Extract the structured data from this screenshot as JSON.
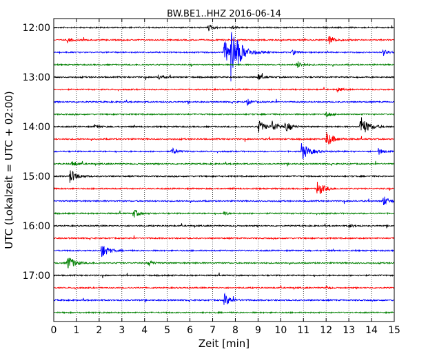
{
  "chart_data": {
    "type": "line",
    "title": "BW.BE1..HHZ 2016-06-14",
    "xlabel": "Zeit  [min]",
    "ylabel": "UTC (Lokalzeit = UTC + 02:00)",
    "xlim": [
      0,
      15
    ],
    "x_ticks": [
      "0",
      "1",
      "2",
      "3",
      "4",
      "5",
      "6",
      "7",
      "8",
      "9",
      "10",
      "11",
      "12",
      "13",
      "14",
      "15"
    ],
    "y_ticks": [
      "12:00",
      "13:00",
      "14:00",
      "15:00",
      "16:00",
      "17:00"
    ],
    "grid": "vertical dotted at each minute",
    "line_interval_min": 15,
    "color_cycle": [
      "#000000",
      "#ff0000",
      "#0000ff",
      "#008000"
    ],
    "traces": [
      {
        "start": "12:00",
        "events": [
          {
            "t": 6.8,
            "amp": 0.5
          },
          {
            "t": 7.8,
            "amp": 0.3
          }
        ]
      },
      {
        "start": "12:15",
        "events": [
          {
            "t": 0.6,
            "amp": 0.4
          },
          {
            "t": 12.1,
            "amp": 0.8
          }
        ]
      },
      {
        "start": "12:30",
        "events": [
          {
            "t": 7.5,
            "amp": 1.8
          },
          {
            "t": 7.8,
            "amp": 3.5
          },
          {
            "t": 10.5,
            "amp": 0.4
          },
          {
            "t": 14.5,
            "amp": 0.5
          }
        ]
      },
      {
        "start": "12:45",
        "events": [
          {
            "t": 10.7,
            "amp": 0.6
          }
        ]
      },
      {
        "start": "13:00",
        "events": [
          {
            "t": 4.6,
            "amp": 0.4
          },
          {
            "t": 9.0,
            "amp": 0.5
          }
        ]
      },
      {
        "start": "13:15",
        "events": [
          {
            "t": 12.5,
            "amp": 0.3
          }
        ]
      },
      {
        "start": "13:30",
        "events": [
          {
            "t": 8.5,
            "amp": 0.5
          }
        ]
      },
      {
        "start": "13:45",
        "events": [
          {
            "t": 12.0,
            "amp": 0.5
          }
        ]
      },
      {
        "start": "14:00",
        "events": [
          {
            "t": 1.8,
            "amp": 0.3
          },
          {
            "t": 9.0,
            "amp": 1.0
          },
          {
            "t": 9.6,
            "amp": 0.9
          },
          {
            "t": 10.2,
            "amp": 0.8
          },
          {
            "t": 13.5,
            "amp": 1.6
          }
        ]
      },
      {
        "start": "14:15",
        "events": [
          {
            "t": 12.0,
            "amp": 1.2
          }
        ]
      },
      {
        "start": "14:30",
        "events": [
          {
            "t": 5.2,
            "amp": 0.6
          },
          {
            "t": 10.9,
            "amp": 1.4
          },
          {
            "t": 14.3,
            "amp": 0.5
          }
        ]
      },
      {
        "start": "14:45",
        "events": [
          {
            "t": 0.8,
            "amp": 0.5
          }
        ]
      },
      {
        "start": "15:00",
        "events": [
          {
            "t": 0.7,
            "amp": 1.1
          }
        ]
      },
      {
        "start": "15:15",
        "events": [
          {
            "t": 11.6,
            "amp": 1.2
          }
        ]
      },
      {
        "start": "15:30",
        "events": [
          {
            "t": 14.5,
            "amp": 0.8
          }
        ]
      },
      {
        "start": "15:45",
        "events": [
          {
            "t": 3.5,
            "amp": 0.7
          },
          {
            "t": 7.5,
            "amp": 0.3
          }
        ]
      },
      {
        "start": "16:00",
        "events": [
          {
            "t": 13.0,
            "amp": 0.3
          }
        ]
      },
      {
        "start": "16:15",
        "events": []
      },
      {
        "start": "16:30",
        "events": [
          {
            "t": 2.1,
            "amp": 1.1
          }
        ]
      },
      {
        "start": "16:45",
        "events": [
          {
            "t": 0.6,
            "amp": 1.2
          },
          {
            "t": 4.2,
            "amp": 0.4
          }
        ]
      },
      {
        "start": "17:00",
        "events": []
      },
      {
        "start": "17:15",
        "events": [
          {
            "t": 12.0,
            "amp": 0.2
          }
        ]
      },
      {
        "start": "17:30",
        "events": [
          {
            "t": 7.5,
            "amp": 1.0
          }
        ]
      },
      {
        "start": "17:45",
        "events": []
      }
    ]
  }
}
